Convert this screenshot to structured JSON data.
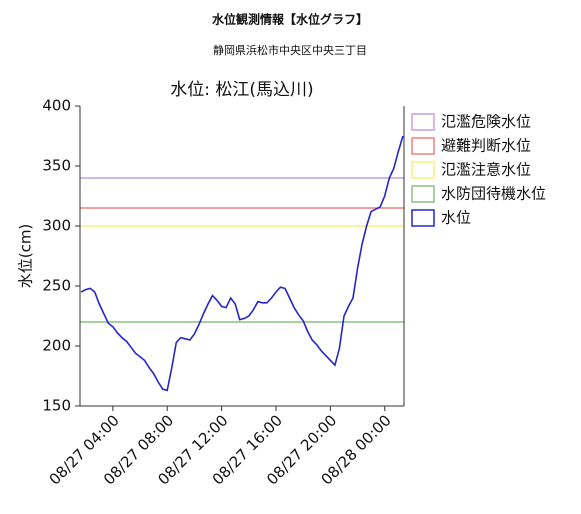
{
  "header": {
    "title": "水位観測情報【水位グラフ】",
    "location": "静岡県浜松市中央区中央三丁目"
  },
  "chart_data": {
    "type": "line",
    "title": "水位: 松江(馬込川)",
    "y_label": "水位(cm)",
    "ylim": [
      150,
      400
    ],
    "yticks": [
      150,
      200,
      250,
      300,
      350,
      400
    ],
    "xlim": [
      "08/27 01:35",
      "08/28 01:25"
    ],
    "xticks": [
      "08/27 04:00",
      "08/27 08:00",
      "08/27 12:00",
      "08/27 16:00",
      "08/27 20:00",
      "08/28 00:00"
    ],
    "thresholds": [
      {
        "name": "氾濫危険水位",
        "value": 340,
        "color": "#c9a0dc"
      },
      {
        "name": "避難判断水位",
        "value": 315,
        "color": "#f08080"
      },
      {
        "name": "氾濫注意水位",
        "value": 300,
        "color": "#f5f07a"
      },
      {
        "name": "水防団待機水位",
        "value": 220,
        "color": "#8cc084"
      }
    ],
    "x": [
      "08/27 01:40",
      "08/27 02:00",
      "08/27 02:20",
      "08/27 02:40",
      "08/27 03:00",
      "08/27 03:20",
      "08/27 03:40",
      "08/27 04:00",
      "08/27 04:20",
      "08/27 04:40",
      "08/27 05:00",
      "08/27 05:20",
      "08/27 05:40",
      "08/27 06:00",
      "08/27 06:20",
      "08/27 06:40",
      "08/27 07:00",
      "08/27 07:20",
      "08/27 07:40",
      "08/27 08:00",
      "08/27 08:20",
      "08/27 08:40",
      "08/27 09:00",
      "08/27 09:20",
      "08/27 09:40",
      "08/27 10:00",
      "08/27 10:20",
      "08/27 10:40",
      "08/27 11:00",
      "08/27 11:20",
      "08/27 11:40",
      "08/27 12:00",
      "08/27 12:20",
      "08/27 12:40",
      "08/27 13:00",
      "08/27 13:20",
      "08/27 13:40",
      "08/27 14:00",
      "08/27 14:20",
      "08/27 14:40",
      "08/27 15:00",
      "08/27 15:20",
      "08/27 15:40",
      "08/27 16:00",
      "08/27 16:20",
      "08/27 16:40",
      "08/27 17:00",
      "08/27 17:20",
      "08/27 17:40",
      "08/27 18:00",
      "08/27 18:20",
      "08/27 18:40",
      "08/27 19:00",
      "08/27 19:20",
      "08/27 19:40",
      "08/27 20:00",
      "08/27 20:20",
      "08/27 20:40",
      "08/27 21:00",
      "08/27 21:20",
      "08/27 21:40",
      "08/27 22:00",
      "08/27 22:20",
      "08/27 22:40",
      "08/27 23:00",
      "08/27 23:20",
      "08/27 23:40",
      "08/28 00:00",
      "08/28 00:20",
      "08/28 00:40",
      "08/28 01:00",
      "08/28 01:20"
    ],
    "series": [
      {
        "name": "水位",
        "color": "#2626c8",
        "values": [
          245,
          247,
          248,
          245,
          235,
          227,
          219,
          216,
          211,
          207,
          204,
          199,
          194,
          191,
          188,
          182,
          177,
          170,
          164,
          163,
          182,
          203,
          207,
          206,
          205,
          210,
          218,
          227,
          235,
          242,
          238,
          233,
          232,
          240,
          235,
          222,
          223,
          225,
          230,
          237,
          236,
          236,
          240,
          245,
          249,
          248,
          240,
          232,
          226,
          221,
          212,
          205,
          201,
          196,
          192,
          188,
          184,
          198,
          225,
          233,
          240,
          265,
          285,
          300,
          312,
          314,
          316,
          325,
          340,
          348,
          362,
          375
        ]
      }
    ]
  }
}
